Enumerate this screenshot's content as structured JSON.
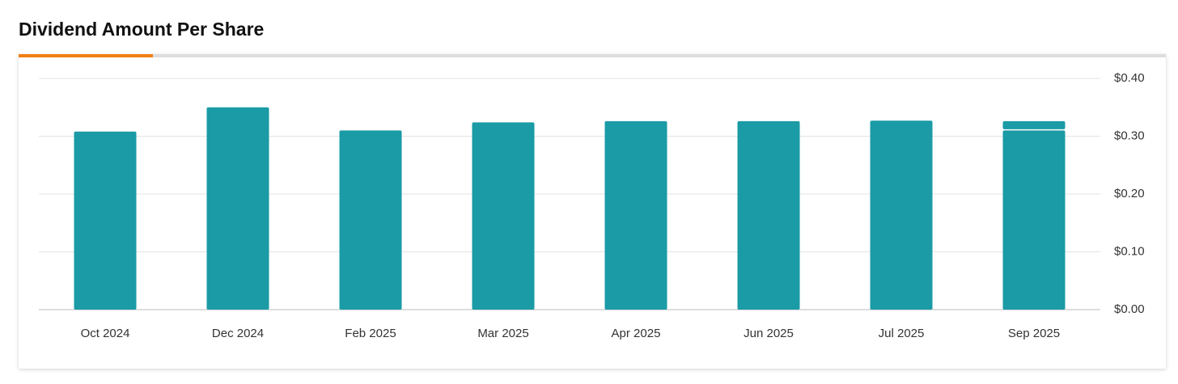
{
  "chart_data": {
    "type": "bar",
    "title": "Dividend Amount Per Share",
    "categories": [
      "Oct 2024",
      "Dec 2024",
      "Feb 2025",
      "Mar 2025",
      "Apr 2025",
      "Jun 2025",
      "Jul 2025",
      "Sep 2025"
    ],
    "series": [
      {
        "color": "#1a9ba6",
        "values": [
          0.308,
          0.35,
          0.31,
          0.324,
          0.326,
          0.326,
          0.327,
          0.31
        ]
      },
      {
        "color": "#1a9ba6",
        "values": [
          null,
          null,
          null,
          null,
          null,
          null,
          null,
          0.016
        ]
      }
    ],
    "stacked": true,
    "ylim": [
      0,
      0.4
    ],
    "yticks": [
      {
        "value": 0,
        "label": "$0.00"
      },
      {
        "value": 0.1,
        "label": "$0.10"
      },
      {
        "value": 0.2,
        "label": "$0.20"
      },
      {
        "value": 0.3,
        "label": "$0.30"
      },
      {
        "value": 0.4,
        "label": "$0.40"
      }
    ],
    "grid": true
  }
}
